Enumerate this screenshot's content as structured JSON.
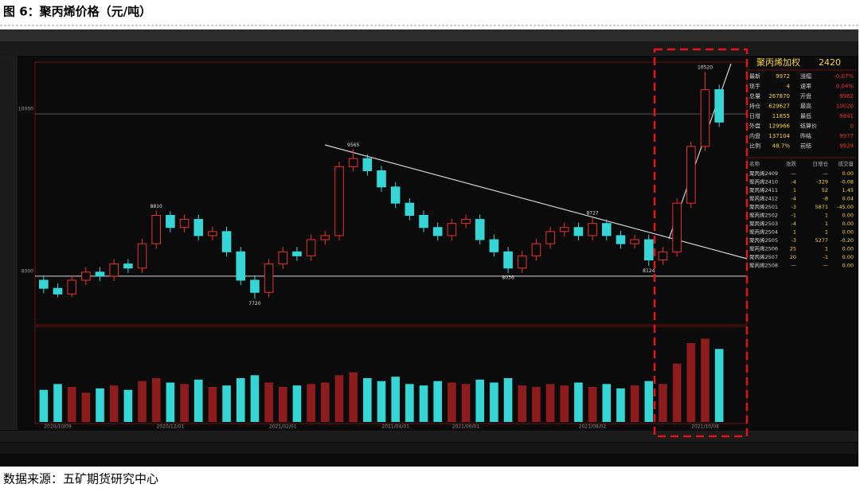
{
  "title": "图 6：聚丙烯价格（元/吨）",
  "source": "数据来源：五矿期货研究中心",
  "panel": {
    "name": "聚丙烯加权",
    "code": "2420",
    "quote_rows": [
      [
        "最新",
        "9972",
        "涨幅",
        "-0.07%"
      ],
      [
        "现手",
        "4",
        "速率",
        "0.04%"
      ],
      [
        "总量",
        "267870",
        "开盘",
        "9962"
      ],
      [
        "持仓",
        "629627",
        "最高",
        "10020"
      ],
      [
        "日增",
        "11855",
        "最低",
        "9841"
      ],
      [
        "外盘",
        "129966",
        "结算价",
        "0"
      ],
      [
        "内盘",
        "137104",
        "昨结",
        "9977"
      ],
      [
        "比例",
        "48.7%",
        "前结",
        "9929"
      ]
    ],
    "contract_header": [
      "名称",
      "涨跌",
      "日增仓",
      "成交量"
    ],
    "contracts": [
      [
        "聚丙烯2409",
        "—",
        "—",
        "0.00"
      ],
      [
        "聚丙烯2410",
        "-4",
        "-329",
        "-0.08"
      ],
      [
        "聚丙烯2411",
        "1",
        "52",
        "1.45"
      ],
      [
        "聚丙烯2412",
        "-4",
        "-8",
        "0.04"
      ],
      [
        "聚丙烯2501",
        "-3",
        "5871",
        "-45.00"
      ],
      [
        "聚丙烯2502",
        "-1",
        "1",
        "0.00"
      ],
      [
        "聚丙烯2503",
        "-4",
        "1",
        "0.00"
      ],
      [
        "聚丙烯2504",
        "1",
        "1",
        "0.00"
      ],
      [
        "聚丙烯2505",
        "-3",
        "5277",
        "-0.20"
      ],
      [
        "聚丙烯2506",
        "25",
        "1",
        "0.00"
      ],
      [
        "聚丙烯2507",
        "20",
        "-1",
        "0.00"
      ],
      [
        "聚丙烯2508",
        "—",
        "—",
        "0.00"
      ]
    ]
  },
  "chart_data": {
    "type": "candlestick",
    "categories": [
      null,
      "2020/10/09",
      null,
      null,
      null,
      null,
      null,
      null,
      null,
      "2020/12/01",
      null,
      null,
      null,
      null,
      null,
      null,
      null,
      "2021/02/01",
      null,
      null,
      null,
      null,
      null,
      null,
      null,
      "2021/04/01",
      null,
      null,
      null,
      null,
      "2021/06/01",
      null,
      null,
      null,
      null,
      null,
      null,
      null,
      null,
      "2021/08/02",
      null,
      null,
      null,
      null,
      null,
      null,
      null,
      "2021/10/08",
      null
    ],
    "open": [
      7950,
      7850,
      7780,
      7950,
      8050,
      8000,
      8150,
      8100,
      8400,
      8750,
      8600,
      8700,
      8500,
      8550,
      8300,
      7950,
      7800,
      8150,
      8300,
      8250,
      8450,
      8500,
      9350,
      9450,
      9300,
      9100,
      8900,
      8750,
      8600,
      8500,
      8650,
      8700,
      8450,
      8300,
      8100,
      8250,
      8400,
      8550,
      8600,
      8500,
      8650,
      8500,
      8400,
      8450,
      8200,
      8300,
      8900,
      9600,
      10300
    ],
    "close": [
      7850,
      7780,
      7950,
      8050,
      8000,
      8150,
      8100,
      8400,
      8750,
      8600,
      8700,
      8500,
      8550,
      8300,
      7950,
      7800,
      8150,
      8300,
      8250,
      8450,
      8500,
      9350,
      9450,
      9300,
      9100,
      8900,
      8750,
      8600,
      8500,
      8650,
      8700,
      8450,
      8300,
      8100,
      8250,
      8400,
      8550,
      8600,
      8500,
      8650,
      8500,
      8400,
      8450,
      8200,
      8300,
      8900,
      9600,
      10300,
      9900
    ],
    "high": [
      8010,
      7910,
      8010,
      8110,
      8110,
      8210,
      8210,
      8460,
      8810,
      8800,
      8760,
      8760,
      8610,
      8610,
      8360,
      8010,
      8210,
      8360,
      8360,
      8510,
      8560,
      9410,
      9565,
      9500,
      9360,
      9160,
      8960,
      8810,
      8660,
      8710,
      8760,
      8760,
      8510,
      8360,
      8310,
      8460,
      8610,
      8660,
      8660,
      8727,
      8700,
      8560,
      8510,
      8510,
      8360,
      8960,
      9660,
      10520,
      10360
    ],
    "low": [
      7790,
      7740,
      7740,
      7890,
      7940,
      7940,
      8040,
      8040,
      8340,
      8540,
      8540,
      8440,
      8440,
      8240,
      7890,
      7720,
      7740,
      8090,
      8190,
      8190,
      8390,
      8440,
      9290,
      9240,
      9040,
      8840,
      8690,
      8540,
      8440,
      8440,
      8590,
      8390,
      8240,
      8036,
      8040,
      8190,
      8340,
      8490,
      8440,
      8440,
      8440,
      8340,
      8340,
      8124,
      8140,
      8240,
      8840,
      9540,
      9840
    ],
    "high_labels": [
      null,
      null,
      null,
      null,
      null,
      null,
      null,
      null,
      "8810",
      null,
      null,
      null,
      null,
      null,
      null,
      null,
      null,
      null,
      null,
      null,
      null,
      null,
      "9565",
      null,
      null,
      null,
      null,
      null,
      null,
      null,
      null,
      null,
      null,
      null,
      null,
      null,
      null,
      null,
      null,
      "8727",
      null,
      null,
      null,
      null,
      null,
      null,
      null,
      "10520",
      null
    ],
    "low_labels": [
      null,
      null,
      null,
      null,
      null,
      null,
      null,
      null,
      null,
      null,
      null,
      null,
      null,
      null,
      null,
      "7720",
      null,
      null,
      null,
      null,
      null,
      null,
      null,
      null,
      null,
      null,
      null,
      null,
      null,
      null,
      null,
      null,
      null,
      "8036",
      null,
      null,
      null,
      null,
      null,
      null,
      null,
      null,
      null,
      "8124",
      null,
      null,
      null,
      null,
      null
    ],
    "up_color": "#e8322e",
    "down_color": "#36d6d6",
    "ylim": [
      7400,
      10620
    ],
    "yticks": [
      8000,
      10000
    ],
    "volume": {
      "values": [
        1100,
        1300,
        1200,
        1000,
        1150,
        1250,
        1100,
        1400,
        1500,
        1350,
        1300,
        1450,
        1200,
        1250,
        1500,
        1600,
        1350,
        1200,
        1250,
        1300,
        1350,
        1600,
        1700,
        1500,
        1400,
        1550,
        1300,
        1250,
        1400,
        1350,
        1300,
        1450,
        1350,
        1500,
        1250,
        1200,
        1300,
        1250,
        1350,
        1200,
        1300,
        1150,
        1250,
        1400,
        1300,
        2000,
        2700,
        2850,
        2500
      ],
      "ylim": [
        0,
        3000
      ]
    }
  }
}
